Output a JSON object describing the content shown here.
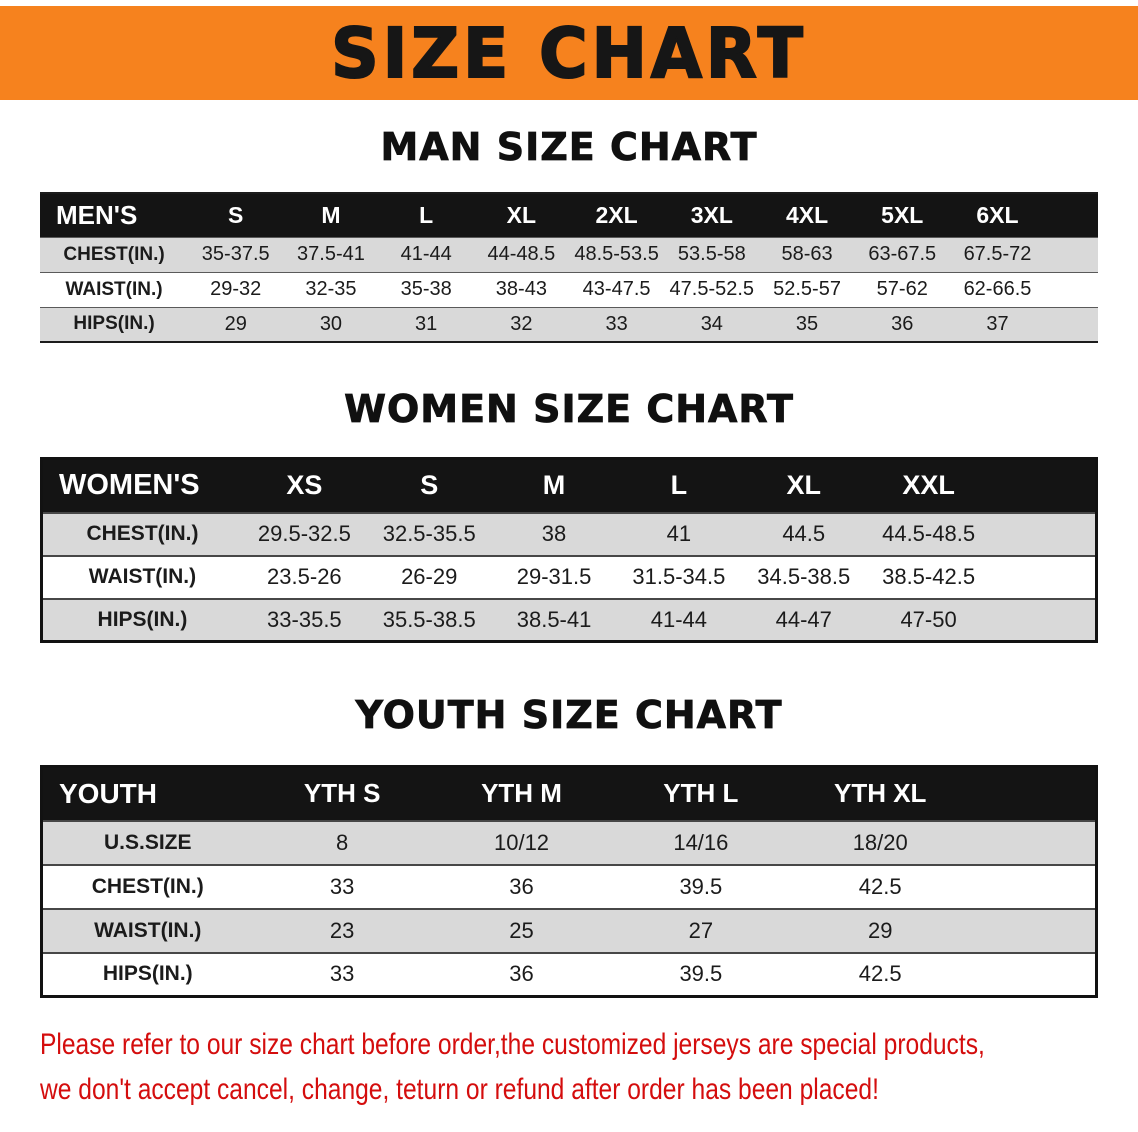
{
  "banner": {
    "title": "SIZE CHART"
  },
  "colors": {
    "banner_bg": "#F6821E",
    "banner_text": "#161616",
    "table_header_bg": "#141414",
    "table_header_text": "#FFFFFF",
    "row_shaded_bg": "#D9D9D9",
    "row_plain_bg": "#FFFFFF",
    "note_text": "#D40D0D"
  },
  "chart_data": [
    {
      "type": "table",
      "title": "MAN SIZE CHART",
      "columns": [
        "MEN'S",
        "S",
        "M",
        "L",
        "XL",
        "2XL",
        "3XL",
        "4XL",
        "5XL",
        "6XL"
      ],
      "rows": [
        {
          "label": "CHEST(IN.)",
          "values": [
            "35-37.5",
            "37.5-41",
            "41-44",
            "44-48.5",
            "48.5-53.5",
            "53.5-58",
            "58-63",
            "63-67.5",
            "67.5-72"
          ]
        },
        {
          "label": "WAIST(IN.)",
          "values": [
            "29-32",
            "32-35",
            "35-38",
            "38-43",
            "43-47.5",
            "47.5-52.5",
            "52.5-57",
            "57-62",
            "62-66.5"
          ]
        },
        {
          "label": "HIPS(IN.)",
          "values": [
            "29",
            "30",
            "31",
            "32",
            "33",
            "34",
            "35",
            "36",
            "37"
          ]
        }
      ]
    },
    {
      "type": "table",
      "title": "WOMEN SIZE CHART",
      "columns": [
        "WOMEN'S",
        "XS",
        "S",
        "M",
        "L",
        "XL",
        "XXL"
      ],
      "rows": [
        {
          "label": "CHEST(IN.)",
          "values": [
            "29.5-32.5",
            "32.5-35.5",
            "38",
            "41",
            "44.5",
            "44.5-48.5"
          ]
        },
        {
          "label": "WAIST(IN.)",
          "values": [
            "23.5-26",
            "26-29",
            "29-31.5",
            "31.5-34.5",
            "34.5-38.5",
            "38.5-42.5"
          ]
        },
        {
          "label": "HIPS(IN.)",
          "values": [
            "33-35.5",
            "35.5-38.5",
            "38.5-41",
            "41-44",
            "44-47",
            "47-50"
          ]
        }
      ]
    },
    {
      "type": "table",
      "title": "YOUTH SIZE CHART",
      "columns": [
        "YOUTH",
        "YTH S",
        "YTH M",
        "YTH L",
        "YTH XL"
      ],
      "rows": [
        {
          "label": "U.S.SIZE",
          "values": [
            "8",
            "10/12",
            "14/16",
            "18/20"
          ]
        },
        {
          "label": "CHEST(IN.)",
          "values": [
            "33",
            "36",
            "39.5",
            "42.5"
          ]
        },
        {
          "label": "WAIST(IN.)",
          "values": [
            "23",
            "25",
            "27",
            "29"
          ]
        },
        {
          "label": "HIPS(IN.)",
          "values": [
            "33",
            "36",
            "39.5",
            "42.5"
          ]
        }
      ]
    }
  ],
  "note": {
    "line1": "Please refer to our size chart before order,the customized jerseys are special products,",
    "line2": "we don't accept cancel, change, teturn or refund after order has been placed!"
  }
}
